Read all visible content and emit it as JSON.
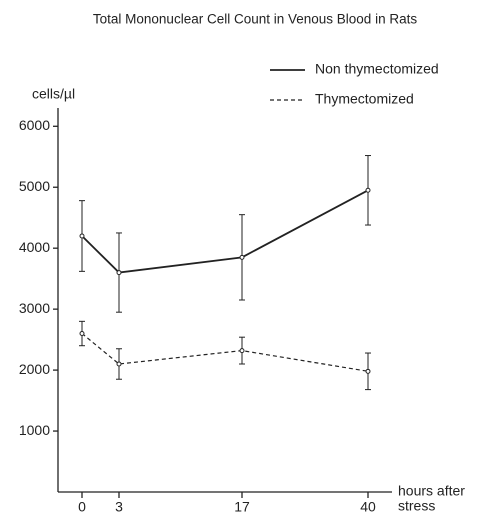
{
  "chart_data": {
    "type": "line",
    "title": "Total Mononuclear Cell Count in Venous Blood in Rats",
    "ylabel": "cells/µl",
    "xlabel": [
      "hours after",
      "stress"
    ],
    "categories": [
      "0",
      "3",
      "17",
      "40"
    ],
    "series": [
      {
        "name": "Non thymectomized",
        "color": "#222222",
        "dash": "solid",
        "values": [
          4200,
          3600,
          3850,
          4950
        ],
        "errors": [
          580,
          650,
          700,
          570
        ]
      },
      {
        "name": "Thymectomized",
        "color": "#222222",
        "dash": "dashed",
        "values": [
          2600,
          2100,
          2320,
          1980
        ],
        "errors": [
          200,
          250,
          220,
          300
        ]
      }
    ],
    "ylim": [
      0,
      6300
    ],
    "yticks": [
      1000,
      2000,
      3000,
      4000,
      5000,
      6000
    ],
    "legend": "upper right"
  }
}
